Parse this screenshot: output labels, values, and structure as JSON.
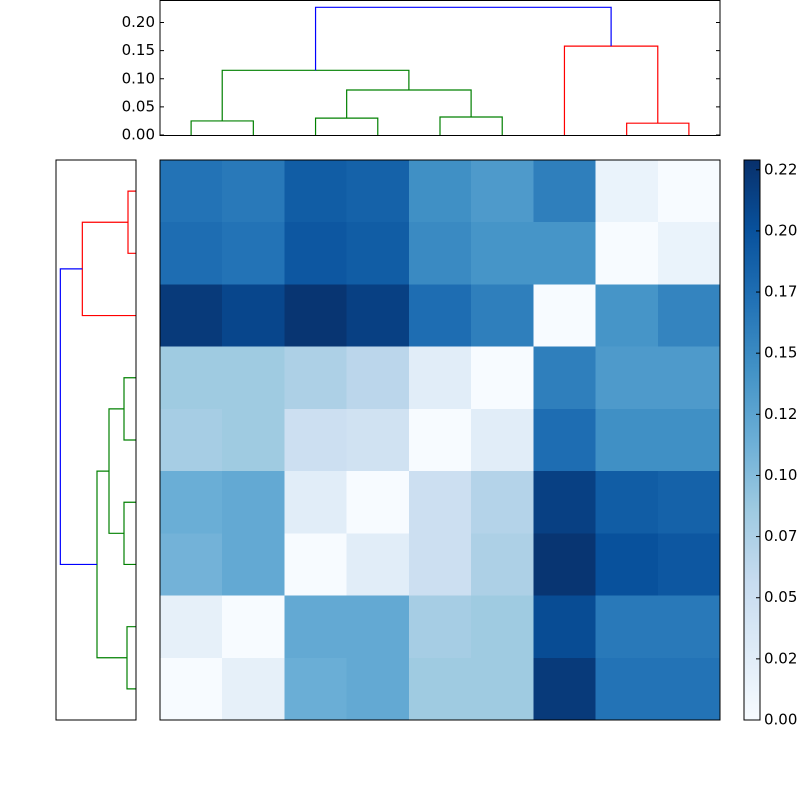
{
  "chart_data": [
    {
      "type": "dendrogram",
      "orientation": "top",
      "ylim": [
        0,
        0.24
      ],
      "yticks": [
        {
          "value": 0,
          "label": "0.00"
        },
        {
          "value": 0.05,
          "label": "0.05"
        },
        {
          "value": 0.1,
          "label": "0.10"
        },
        {
          "value": 0.15,
          "label": "0.15"
        },
        {
          "value": 0.2,
          "label": "0.20"
        }
      ],
      "leaf_count": 9,
      "links": [
        {
          "x": [
            0,
            0,
            1,
            1
          ],
          "y": [
            0,
            0.025,
            0.025,
            0
          ],
          "color": "#008000"
        },
        {
          "x": [
            2,
            2,
            3,
            3
          ],
          "y": [
            0,
            0.03,
            0.03,
            0
          ],
          "color": "#008000"
        },
        {
          "x": [
            4,
            4,
            5,
            5
          ],
          "y": [
            0,
            0.032,
            0.032,
            0
          ],
          "color": "#008000"
        },
        {
          "x": [
            2.5,
            2.5,
            4.5,
            4.5
          ],
          "y": [
            0.03,
            0.08,
            0.08,
            0.032
          ],
          "color": "#008000"
        },
        {
          "x": [
            0.5,
            0.5,
            3.5,
            3.5
          ],
          "y": [
            0.025,
            0.115,
            0.115,
            0.08
          ],
          "color": "#008000"
        },
        {
          "x": [
            7,
            7,
            8,
            8
          ],
          "y": [
            0,
            0.021,
            0.021,
            0
          ],
          "color": "#ff0000"
        },
        {
          "x": [
            6,
            6,
            7.5,
            7.5
          ],
          "y": [
            0,
            0.158,
            0.158,
            0.021
          ],
          "color": "#ff0000"
        },
        {
          "x": [
            2,
            2,
            6.75,
            6.75
          ],
          "y": [
            0.115,
            0.227,
            0.227,
            0.158
          ],
          "color": "#0000ff"
        }
      ]
    },
    {
      "type": "dendrogram",
      "orientation": "left",
      "xlim": [
        0.24,
        0
      ],
      "leaf_count": 9,
      "links": [
        {
          "y": [
            0,
            0,
            1,
            1
          ],
          "x": [
            0,
            0.024,
            0.024,
            0
          ],
          "color": "#ff0000"
        },
        {
          "y": [
            0.5,
            0.5,
            2,
            2
          ],
          "x": [
            0.024,
            0.161,
            0.161,
            0
          ],
          "color": "#ff0000"
        },
        {
          "y": [
            3,
            3,
            4,
            4
          ],
          "x": [
            0,
            0.036,
            0.036,
            0
          ],
          "color": "#008000"
        },
        {
          "y": [
            5,
            5,
            6,
            6
          ],
          "x": [
            0,
            0.036,
            0.036,
            0
          ],
          "color": "#008000"
        },
        {
          "y": [
            3.5,
            3.5,
            5.5,
            5.5
          ],
          "x": [
            0.036,
            0.081,
            0.081,
            0.036
          ],
          "color": "#008000"
        },
        {
          "y": [
            7,
            7,
            8,
            8
          ],
          "x": [
            0,
            0.027,
            0.027,
            0
          ],
          "color": "#008000"
        },
        {
          "y": [
            4.5,
            4.5,
            7.5,
            7.5
          ],
          "x": [
            0.081,
            0.117,
            0.117,
            0.027
          ],
          "color": "#008000"
        },
        {
          "y": [
            1.25,
            1.25,
            6,
            6
          ],
          "x": [
            0.161,
            0.227,
            0.227,
            0.117
          ],
          "color": "#0000ff"
        }
      ]
    },
    {
      "type": "heatmap",
      "values": [
        [
          0.17,
          0.165,
          0.19,
          0.185,
          0.145,
          0.135,
          0.16,
          0.015,
          0.0
        ],
        [
          0.175,
          0.17,
          0.195,
          0.19,
          0.15,
          0.14,
          0.14,
          0.0,
          0.015
        ],
        [
          0.22,
          0.21,
          0.225,
          0.215,
          0.175,
          0.16,
          0.0,
          0.14,
          0.155
        ],
        [
          0.085,
          0.085,
          0.075,
          0.065,
          0.025,
          0.0,
          0.16,
          0.135,
          0.135
        ],
        [
          0.08,
          0.085,
          0.05,
          0.045,
          0.0,
          0.025,
          0.175,
          0.145,
          0.145
        ],
        [
          0.115,
          0.12,
          0.025,
          0.0,
          0.05,
          0.07,
          0.215,
          0.19,
          0.185
        ],
        [
          0.11,
          0.12,
          0.0,
          0.025,
          0.05,
          0.075,
          0.225,
          0.2,
          0.195
        ],
        [
          0.02,
          0.0,
          0.12,
          0.12,
          0.08,
          0.085,
          0.205,
          0.165,
          0.165
        ],
        [
          0.0,
          0.02,
          0.115,
          0.12,
          0.085,
          0.085,
          0.22,
          0.17,
          0.17
        ]
      ],
      "colormap": [
        "#f7fbff",
        "#deebf7",
        "#c6dbef",
        "#9ecae1",
        "#6baed6",
        "#4292c6",
        "#2171b5",
        "#08519c",
        "#08306b"
      ],
      "clim": [
        0,
        0.229
      ],
      "cticks": [
        {
          "value": 0,
          "label": "0.00"
        },
        {
          "value": 0.025,
          "label": "0.02"
        },
        {
          "value": 0.05,
          "label": "0.05"
        },
        {
          "value": 0.075,
          "label": "0.07"
        },
        {
          "value": 0.1,
          "label": "0.10"
        },
        {
          "value": 0.125,
          "label": "0.12"
        },
        {
          "value": 0.15,
          "label": "0.15"
        },
        {
          "value": 0.175,
          "label": "0.17"
        },
        {
          "value": 0.2,
          "label": "0.20"
        },
        {
          "value": 0.225,
          "label": "0.22"
        }
      ]
    }
  ]
}
